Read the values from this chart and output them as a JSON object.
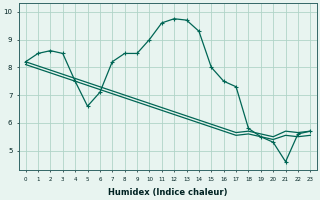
{
  "xlabel": "Humidex (Indice chaleur)",
  "background_color": "#e8f4f0",
  "grid_color": "#b0d4c8",
  "line_color": "#006655",
  "xlim": [
    -0.5,
    23.5
  ],
  "ylim": [
    4.3,
    10.3
  ],
  "xticks": [
    0,
    1,
    2,
    3,
    4,
    5,
    6,
    7,
    8,
    9,
    10,
    11,
    12,
    13,
    14,
    15,
    16,
    17,
    18,
    19,
    20,
    21,
    22,
    23
  ],
  "yticks": [
    5,
    6,
    7,
    8,
    9,
    10
  ],
  "hours": [
    0,
    1,
    2,
    3,
    4,
    5,
    6,
    7,
    8,
    9,
    10,
    11,
    12,
    13,
    14,
    15,
    16,
    17,
    18,
    19,
    20,
    21,
    22,
    23
  ],
  "line_wavy": [
    8.2,
    8.5,
    8.6,
    8.5,
    7.5,
    6.6,
    7.1,
    8.2,
    8.5,
    8.5,
    9.0,
    9.6,
    9.75,
    9.7,
    9.3,
    8.0,
    7.5,
    7.3,
    5.8,
    5.5,
    5.3,
    4.6,
    5.6,
    5.7
  ],
  "line_diag1": [
    8.2,
    8.05,
    7.9,
    7.75,
    7.6,
    7.45,
    7.3,
    7.15,
    7.0,
    6.85,
    6.7,
    6.55,
    6.4,
    6.25,
    6.1,
    5.95,
    5.8,
    5.65,
    5.7,
    5.6,
    5.5,
    5.7,
    5.65,
    5.7
  ],
  "line_diag2": [
    8.1,
    7.95,
    7.8,
    7.65,
    7.5,
    7.35,
    7.2,
    7.05,
    6.9,
    6.75,
    6.6,
    6.45,
    6.3,
    6.15,
    6.0,
    5.85,
    5.7,
    5.55,
    5.6,
    5.5,
    5.4,
    5.55,
    5.5,
    5.55
  ]
}
